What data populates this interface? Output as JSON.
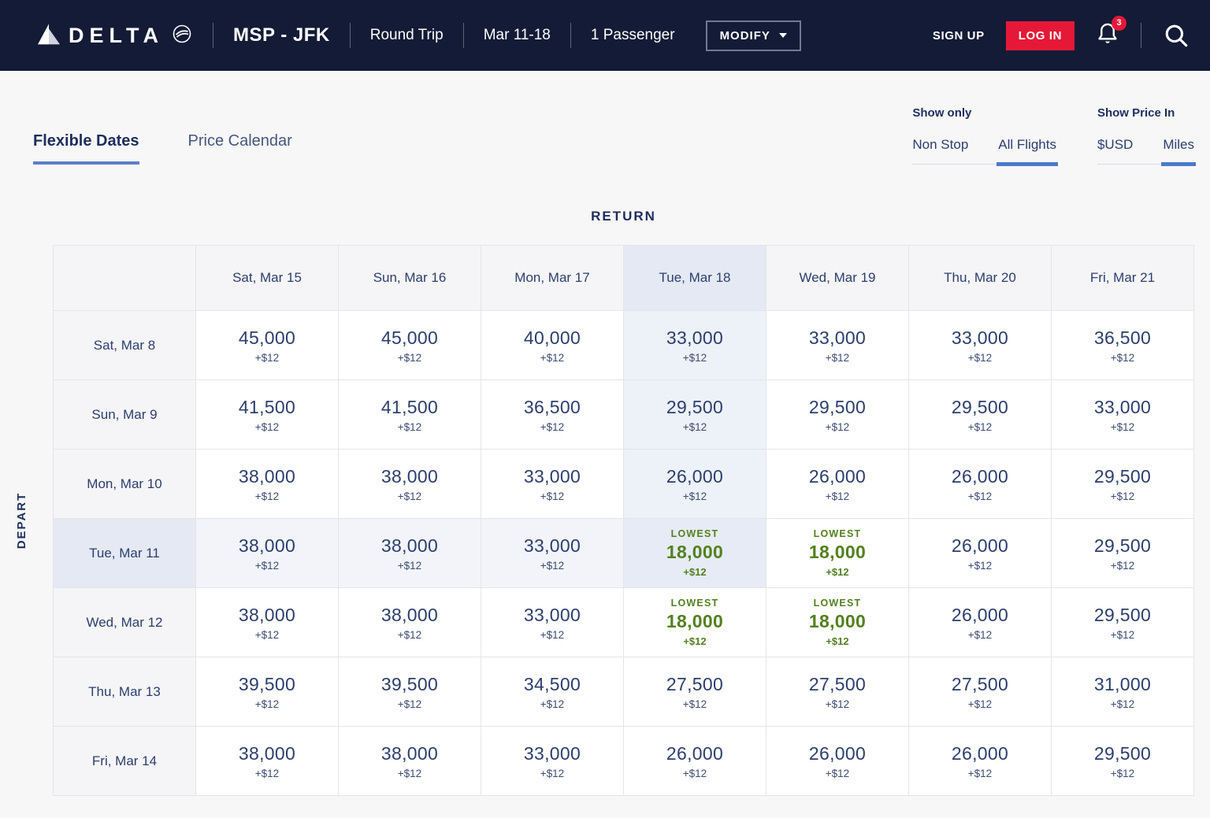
{
  "navbar": {
    "brand": "DELTA",
    "route": "MSP - JFK",
    "trip_type": "Round Trip",
    "dates": "Mar 11-18",
    "passengers": "1 Passenger",
    "modify_label": "MODIFY",
    "signup_label": "SIGN UP",
    "login_label": "LOG IN",
    "notification_count": "3"
  },
  "tabs": [
    {
      "label": "Flexible Dates",
      "active": true
    },
    {
      "label": "Price Calendar",
      "active": false
    }
  ],
  "filters": {
    "show_only": {
      "label": "Show only",
      "options": [
        "Non Stop",
        "All Flights"
      ],
      "selected": "All Flights"
    },
    "show_price_in": {
      "label": "Show Price In",
      "options": [
        "$USD",
        "Miles"
      ],
      "selected": "Miles"
    }
  },
  "matrix": {
    "return_label": "RETURN",
    "depart_label": "DEPART",
    "fee": "+$12",
    "lowest_label": "LOWEST",
    "columns": [
      "Sat, Mar 15",
      "Sun, Mar 16",
      "Mon, Mar 17",
      "Tue, Mar 18",
      "Wed, Mar 19",
      "Thu, Mar 20",
      "Fri, Mar 21"
    ],
    "rows": [
      "Sat, Mar 8",
      "Sun, Mar 9",
      "Mon, Mar 10",
      "Tue, Mar 11",
      "Wed, Mar 12",
      "Thu, Mar 13",
      "Fri, Mar 14"
    ],
    "selected_col_index": 3,
    "selected_row_index": 3,
    "cells": [
      [
        "45,000",
        "45,000",
        "40,000",
        "33,000",
        "33,000",
        "33,000",
        "36,500"
      ],
      [
        "41,500",
        "41,500",
        "36,500",
        "29,500",
        "29,500",
        "29,500",
        "33,000"
      ],
      [
        "38,000",
        "38,000",
        "33,000",
        "26,000",
        "26,000",
        "26,000",
        "29,500"
      ],
      [
        "38,000",
        "38,000",
        "33,000",
        "18,000",
        "18,000",
        "26,000",
        "29,500"
      ],
      [
        "38,000",
        "38,000",
        "33,000",
        "18,000",
        "18,000",
        "26,000",
        "29,500"
      ],
      [
        "39,500",
        "39,500",
        "34,500",
        "27,500",
        "27,500",
        "27,500",
        "31,000"
      ],
      [
        "38,000",
        "38,000",
        "33,000",
        "26,000",
        "26,000",
        "26,000",
        "29,500"
      ]
    ],
    "lowest_cells": [
      [
        3,
        3
      ],
      [
        3,
        4
      ],
      [
        4,
        3
      ],
      [
        4,
        4
      ]
    ]
  },
  "colors": {
    "nav_bg": "#141b36",
    "page_bg": "#f7f7f8",
    "navy": "#2c3e6e",
    "navy_strong": "#1d2e5c",
    "red": "#e51937",
    "green": "#538020",
    "accent_blue": "#5b80c7",
    "header_tint": "#e4e9f3",
    "col_tint": "#edf1f8",
    "row_tint": "#f2f4f9",
    "sel_tint": "#e6ebf5"
  }
}
